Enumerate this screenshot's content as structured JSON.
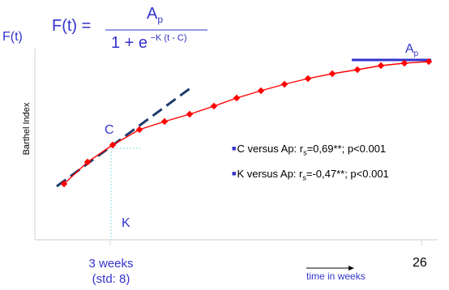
{
  "formula": {
    "lhs": "F(t) =",
    "numerator": "A",
    "numerator_sub": "p",
    "denominator_base": "1 + e",
    "denominator_exponent": "−K (t - C)"
  },
  "y_axis": {
    "short_label": "F(t)",
    "label": "Barthel Index"
  },
  "x_axis": {
    "label": "time in weeks"
  },
  "curve_label": {
    "text": "A",
    "sub": "p"
  },
  "c_label": "C",
  "k_label": "K",
  "tick_label": {
    "line1": "3 weeks",
    "line2": "(std: 8)"
  },
  "annotations": [
    {
      "pre": "C versus Ap: r",
      "sub": "s",
      "post": "=0,69**; p<0.001"
    },
    {
      "pre": "K versus Ap: r",
      "sub": "s",
      "post": "=-0,47**; p<0.001"
    }
  ],
  "page_number": "26",
  "colors": {
    "axis_text": "#3333cc",
    "curve": "#ff0000",
    "plateau_line": "#3333cc",
    "tangent": "#1f3b6b",
    "guides": "#88dddd"
  }
}
